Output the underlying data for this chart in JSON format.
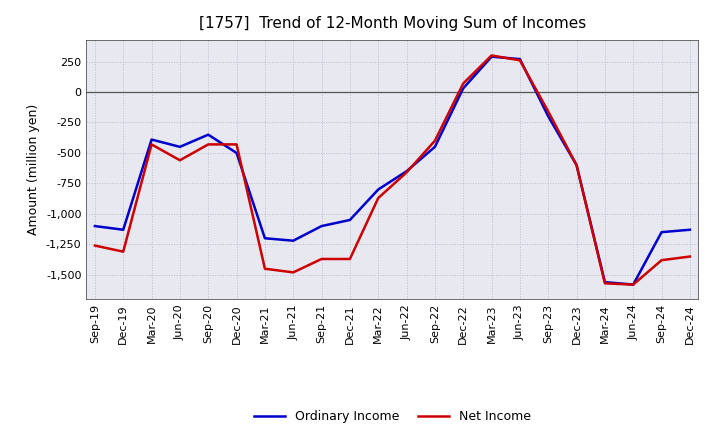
{
  "title": "[1757]  Trend of 12-Month Moving Sum of Incomes",
  "ylabel": "Amount (million yen)",
  "x_labels": [
    "Sep-19",
    "Dec-19",
    "Mar-20",
    "Jun-20",
    "Sep-20",
    "Dec-20",
    "Mar-21",
    "Jun-21",
    "Sep-21",
    "Dec-21",
    "Mar-22",
    "Jun-22",
    "Sep-22",
    "Dec-22",
    "Mar-23",
    "Jun-23",
    "Sep-23",
    "Dec-23",
    "Mar-24",
    "Jun-24",
    "Sep-24",
    "Dec-24"
  ],
  "ordinary_income": [
    -1100,
    -1130,
    -390,
    -450,
    -350,
    -500,
    -1200,
    -1220,
    -1100,
    -1050,
    -800,
    -650,
    -450,
    30,
    290,
    270,
    -200,
    -600,
    -1560,
    -1580,
    -1150,
    -1130
  ],
  "net_income": [
    -1260,
    -1310,
    -430,
    -560,
    -430,
    -430,
    -1450,
    -1480,
    -1370,
    -1370,
    -870,
    -660,
    -400,
    70,
    300,
    260,
    -160,
    -600,
    -1570,
    -1580,
    -1380,
    -1350
  ],
  "ordinary_color": "#0000cc",
  "net_color": "#cc0000",
  "ylim": [
    -1700,
    430
  ],
  "yticks": [
    -1500,
    -1250,
    -1000,
    -750,
    -500,
    -250,
    0,
    250
  ],
  "plot_bg_color": "#e8e8f0",
  "fig_bg_color": "#ffffff",
  "grid_color": "#bbbbcc",
  "title_fontsize": 11,
  "label_fontsize": 9,
  "tick_fontsize": 8,
  "legend_fontsize": 9,
  "line_width": 1.8
}
